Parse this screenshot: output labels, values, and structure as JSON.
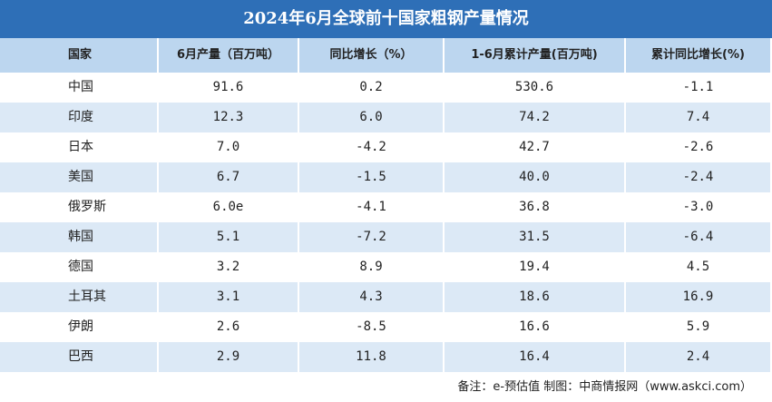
{
  "title": "2024年6月全球前十国家粗钢产量情况",
  "table": {
    "header": [
      "国家",
      "6月产量（百万吨）",
      "同比增长（%）",
      "1-6月累计产量(百万吨)",
      "累计同比增长(%)"
    ],
    "rows": [
      [
        "中国",
        "91.6",
        "0.2",
        "530.6",
        "-1.1"
      ],
      [
        "印度",
        "12.3",
        "6.0",
        "74.2",
        "7.4"
      ],
      [
        "日本",
        "7.0",
        "-4.2",
        "42.7",
        "-2.6"
      ],
      [
        "美国",
        "6.7",
        "-1.5",
        "40.0",
        "-2.4"
      ],
      [
        "俄罗斯",
        "6.0e",
        "-4.1",
        "36.8",
        "-3.0"
      ],
      [
        "韩国",
        "5.1",
        "-7.2",
        "31.5",
        "-6.4"
      ],
      [
        "德国",
        "3.2",
        "8.9",
        "19.4",
        "4.5"
      ],
      [
        "土耳其",
        "3.1",
        "4.3",
        "18.6",
        "16.9"
      ],
      [
        "伊朗",
        "2.6",
        "-8.5",
        "16.6",
        "5.9"
      ],
      [
        "巴西",
        "2.9",
        "11.8",
        "16.4",
        "2.4"
      ]
    ]
  },
  "footer": "备注：e-预估值 制图：中商情报网（www.askci.com）"
}
